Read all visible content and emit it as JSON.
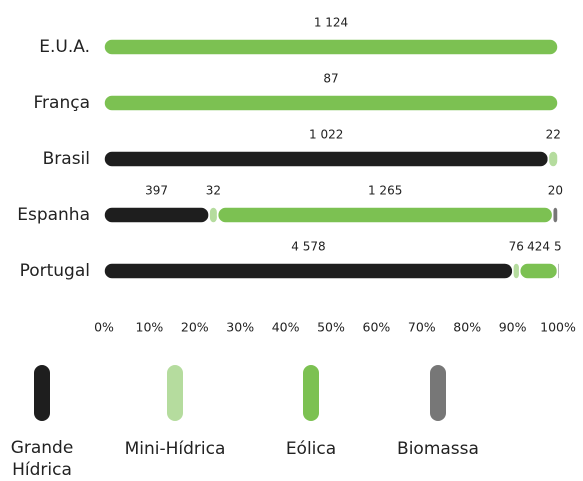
{
  "chart_data": {
    "type": "bar",
    "orientation": "horizontal",
    "stacked": "percent",
    "categories": [
      "E.U.A.",
      "França",
      "Brasil",
      "Espanha",
      "Portugal"
    ],
    "series": [
      {
        "name": "Grande Hídrica",
        "color": "#1e1e1e",
        "values": [
          null,
          null,
          1022,
          397,
          4578
        ],
        "value_labels": [
          null,
          null,
          "1 022",
          "397",
          "4 578"
        ]
      },
      {
        "name": "Mini-Hídrica",
        "color": "#b5dc9e",
        "values": [
          null,
          null,
          22,
          32,
          76
        ],
        "value_labels": [
          null,
          null,
          "22",
          "32",
          "76"
        ]
      },
      {
        "name": "Eólica",
        "color": "#7cc152",
        "values": [
          1124,
          87,
          null,
          1265,
          424
        ],
        "value_labels": [
          "1 124",
          "87",
          null,
          "1 265",
          "424"
        ]
      },
      {
        "name": "Biomassa",
        "color": "#777777",
        "values": [
          null,
          null,
          null,
          20,
          5
        ],
        "value_labels": [
          null,
          null,
          null,
          "20",
          "5"
        ]
      }
    ],
    "xlim": [
      0,
      100
    ],
    "xticks": [
      {
        "value": 0,
        "label": "0%"
      },
      {
        "value": 10,
        "label": "10%"
      },
      {
        "value": 20,
        "label": "20%"
      },
      {
        "value": 30,
        "label": "30%"
      },
      {
        "value": 40,
        "label": "40%"
      },
      {
        "value": 50,
        "label": "50%"
      },
      {
        "value": 60,
        "label": "60%"
      },
      {
        "value": 70,
        "label": "70%"
      },
      {
        "value": 80,
        "label": "80%"
      },
      {
        "value": 90,
        "label": "90%"
      },
      {
        "value": 100,
        "label": "100%"
      }
    ]
  }
}
